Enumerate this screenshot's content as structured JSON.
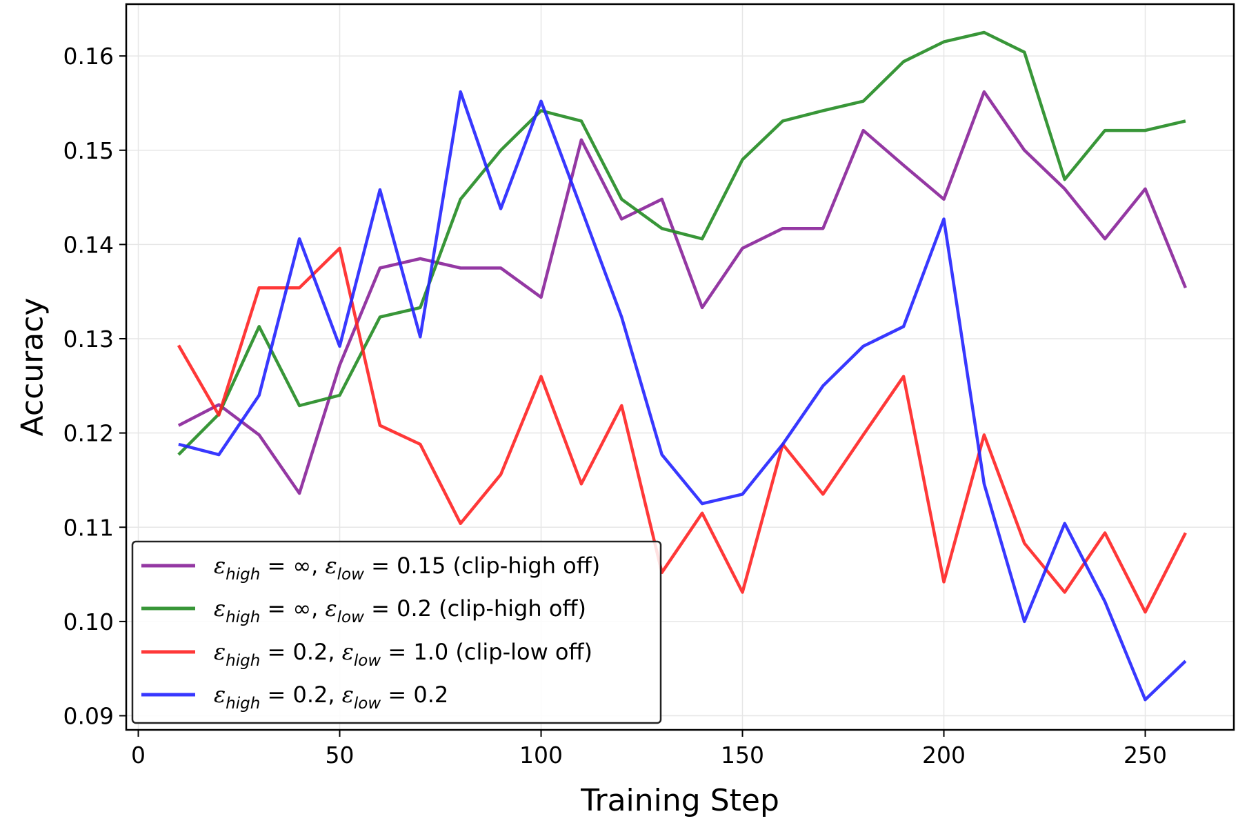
{
  "chart_data": {
    "type": "line",
    "title": "",
    "xlabel": "Training Step",
    "ylabel": "Accuracy",
    "xlim": [
      -3,
      272
    ],
    "ylim": [
      0.0885,
      0.1655
    ],
    "xticks": [
      0,
      50,
      100,
      150,
      200,
      250
    ],
    "yticks": [
      0.09,
      0.1,
      0.11,
      0.12,
      0.13,
      0.14,
      0.15,
      0.16
    ],
    "xtick_labels": [
      "0",
      "50",
      "100",
      "150",
      "200",
      "250"
    ],
    "ytick_labels": [
      "0.09",
      "0.10",
      "0.11",
      "0.12",
      "0.13",
      "0.14",
      "0.15",
      "0.16"
    ],
    "grid": true,
    "legend_position": "lower-left",
    "x": [
      10,
      20,
      30,
      40,
      50,
      60,
      70,
      80,
      90,
      100,
      110,
      120,
      130,
      140,
      150,
      160,
      170,
      180,
      190,
      200,
      210,
      220,
      230,
      240,
      250,
      260
    ],
    "series": [
      {
        "name": "purple",
        "color": "#882299",
        "legend": {
          "eps": "ε",
          "sub1": "high",
          "mid": " = ∞, ",
          "sub2": "low",
          "tail": " = 0.15 (clip-high off)"
        },
        "values": [
          0.1208,
          0.123,
          0.1198,
          0.1136,
          0.1272,
          0.1375,
          0.1385,
          0.1375,
          0.1375,
          0.1344,
          0.1511,
          0.1427,
          0.1448,
          0.1333,
          0.1396,
          0.1417,
          0.1417,
          0.1521,
          0.1484,
          0.1448,
          0.1562,
          0.15,
          0.1459,
          0.1406,
          0.1459,
          0.1354
        ]
      },
      {
        "name": "green",
        "color": "#228B22",
        "legend": {
          "eps": "ε",
          "sub1": "high",
          "mid": " = ∞, ",
          "sub2": "low",
          "tail": " = 0.2 (clip-high off)"
        },
        "values": [
          0.1177,
          0.122,
          0.1313,
          0.1229,
          0.124,
          0.1323,
          0.1333,
          0.1448,
          0.15,
          0.1542,
          0.1531,
          0.1448,
          0.1417,
          0.1406,
          0.149,
          0.1531,
          0.1542,
          0.1552,
          0.1594,
          0.1615,
          0.1625,
          0.1604,
          0.1469,
          0.1521,
          0.1521,
          0.1531
        ]
      },
      {
        "name": "red",
        "color": "#FF2222",
        "legend": {
          "eps": "ε",
          "sub1": "high",
          "mid": " = 0.2, ",
          "sub2": "low",
          "tail": " = 1.0 (clip-low off)"
        },
        "values": [
          0.1293,
          0.1219,
          0.1354,
          0.1354,
          0.1396,
          0.1208,
          0.1188,
          0.1104,
          0.1156,
          0.126,
          0.1146,
          0.1229,
          0.1052,
          0.1115,
          0.1031,
          0.1188,
          0.1135,
          0.1198,
          0.126,
          0.1042,
          0.1198,
          0.1083,
          0.1031,
          0.1094,
          0.101,
          0.1094
        ]
      },
      {
        "name": "blue",
        "color": "#2222FF",
        "legend": {
          "eps": "ε",
          "sub1": "high",
          "mid": " = 0.2, ",
          "sub2": "low",
          "tail": " = 0.2"
        },
        "values": [
          0.1188,
          0.1177,
          0.124,
          0.1406,
          0.1292,
          0.1458,
          0.1302,
          0.1562,
          0.1438,
          0.1552,
          0.1438,
          0.1323,
          0.1177,
          0.1125,
          0.1135,
          0.1188,
          0.125,
          0.1292,
          0.1313,
          0.1427,
          0.1146,
          0.1,
          0.1104,
          0.1021,
          0.0917,
          0.0958
        ]
      }
    ]
  }
}
